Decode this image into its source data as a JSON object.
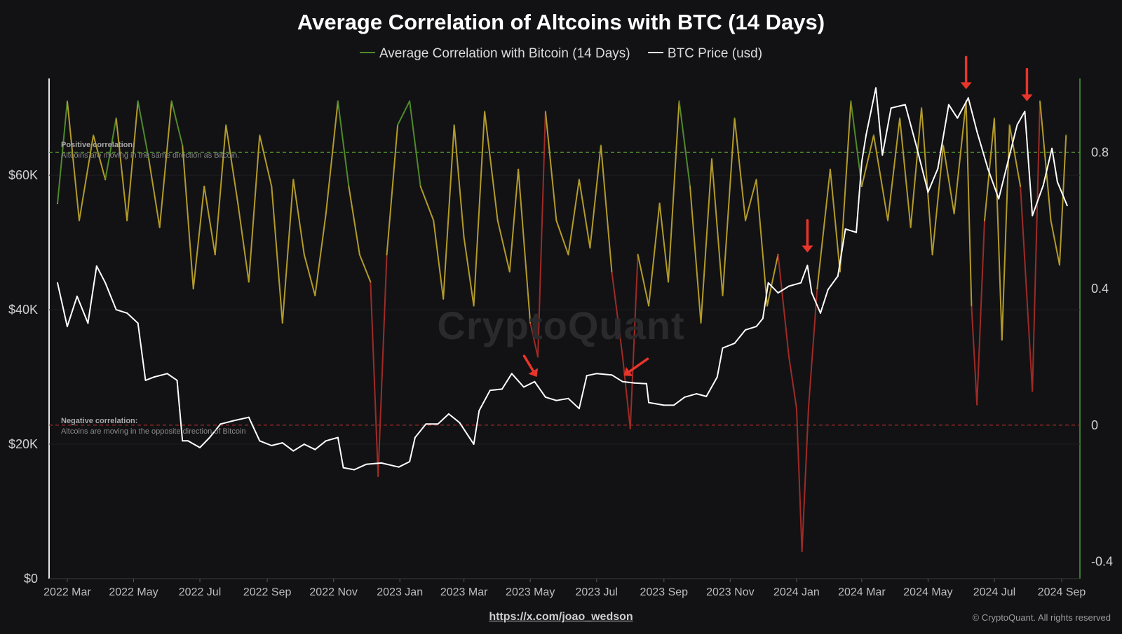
{
  "colors": {
    "background": "#121214",
    "price_line": "#ffffff",
    "corr_high": "#4f8a2b",
    "corr_mid": "#b39b2a",
    "corr_low": "#9e2b27",
    "right_axis": "#3d7a2a",
    "arrow": "#e8352b"
  },
  "footer": {
    "link": "https://x.com/joao_wedson",
    "copyright": "© CryptoQuant. All rights reserved"
  },
  "watermark": "CryptoQuant",
  "notes": {
    "positive_title": "Positive correlation:",
    "positive_text": "Altcoins are moving in the same direction as Bitcoin.",
    "negative_title": "Negative correlation:",
    "negative_text": "Altcoins are moving in the opposite direction of Bitcoin"
  },
  "chart_data": {
    "type": "line",
    "title": "Average Correlation of Altcoins with BTC (14 Days)",
    "x_axis": {
      "type": "date",
      "range": [
        "2022-02-20",
        "2024-09-10"
      ],
      "tick_labels": [
        "2022 Mar",
        "2022 May",
        "2022 Jul",
        "2022 Sep",
        "2022 Nov",
        "2023 Jan",
        "2023 Mar",
        "2023 May",
        "2023 Jul",
        "2023 Sep",
        "2023 Nov",
        "2024 Jan",
        "2024 Mar",
        "2024 May",
        "2024 Jul",
        "2024 Sep"
      ],
      "tick_dates": [
        "2022-03-01",
        "2022-05-01",
        "2022-07-01",
        "2022-09-01",
        "2022-11-01",
        "2023-01-01",
        "2023-03-01",
        "2023-05-01",
        "2023-07-01",
        "2023-09-01",
        "2023-11-01",
        "2024-01-01",
        "2024-03-01",
        "2024-05-01",
        "2024-07-01",
        "2024-09-01"
      ]
    },
    "left_axis": {
      "label": "",
      "range": [
        0,
        72000
      ],
      "ticks": [
        0,
        20000,
        40000,
        60000
      ],
      "tick_labels": [
        "$0",
        "$20K",
        "$40K",
        "$60K"
      ]
    },
    "right_axis": {
      "label": "",
      "range": [
        -0.45,
        1.0
      ],
      "ticks": [
        -0.4,
        0,
        0.4,
        0.8
      ],
      "tick_labels": [
        "-0.4",
        "0",
        "0.4",
        "0.8"
      ]
    },
    "reference_lines": [
      {
        "axis": "right",
        "value": 0.8,
        "color": "#4f8a2b",
        "style": "dashed"
      },
      {
        "axis": "right",
        "value": 0.0,
        "color": "#9e2b27",
        "style": "dashed"
      }
    ],
    "series": [
      {
        "name": "Average Correlation with Bitcoin (14 Days)",
        "axis": "right",
        "color_scale": "green above 0.8, gold between, red below ~0.25",
        "points": [
          [
            "2022-02-20",
            0.65
          ],
          [
            "2022-03-01",
            0.95
          ],
          [
            "2022-03-12",
            0.6
          ],
          [
            "2022-03-25",
            0.85
          ],
          [
            "2022-04-05",
            0.72
          ],
          [
            "2022-04-15",
            0.9
          ],
          [
            "2022-04-25",
            0.6
          ],
          [
            "2022-05-05",
            0.95
          ],
          [
            "2022-05-15",
            0.78
          ],
          [
            "2022-05-25",
            0.58
          ],
          [
            "2022-06-05",
            0.95
          ],
          [
            "2022-06-15",
            0.82
          ],
          [
            "2022-06-25",
            0.4
          ],
          [
            "2022-07-05",
            0.7
          ],
          [
            "2022-07-15",
            0.5
          ],
          [
            "2022-07-25",
            0.88
          ],
          [
            "2022-08-05",
            0.65
          ],
          [
            "2022-08-15",
            0.42
          ],
          [
            "2022-08-25",
            0.85
          ],
          [
            "2022-09-05",
            0.7
          ],
          [
            "2022-09-15",
            0.3
          ],
          [
            "2022-09-25",
            0.72
          ],
          [
            "2022-10-05",
            0.5
          ],
          [
            "2022-10-15",
            0.38
          ],
          [
            "2022-10-25",
            0.62
          ],
          [
            "2022-11-05",
            0.95
          ],
          [
            "2022-11-15",
            0.7
          ],
          [
            "2022-11-25",
            0.5
          ],
          [
            "2022-12-05",
            0.42
          ],
          [
            "2022-12-12",
            -0.15
          ],
          [
            "2022-12-20",
            0.5
          ],
          [
            "2022-12-30",
            0.88
          ],
          [
            "2023-01-10",
            0.95
          ],
          [
            "2023-01-20",
            0.7
          ],
          [
            "2023-02-01",
            0.6
          ],
          [
            "2023-02-10",
            0.37
          ],
          [
            "2023-02-20",
            0.88
          ],
          [
            "2023-03-01",
            0.55
          ],
          [
            "2023-03-10",
            0.35
          ],
          [
            "2023-03-20",
            0.92
          ],
          [
            "2023-04-01",
            0.6
          ],
          [
            "2023-04-12",
            0.45
          ],
          [
            "2023-04-20",
            0.75
          ],
          [
            "2023-05-01",
            0.3
          ],
          [
            "2023-05-08",
            0.2
          ],
          [
            "2023-05-15",
            0.92
          ],
          [
            "2023-05-25",
            0.6
          ],
          [
            "2023-06-05",
            0.5
          ],
          [
            "2023-06-15",
            0.72
          ],
          [
            "2023-06-25",
            0.52
          ],
          [
            "2023-07-05",
            0.82
          ],
          [
            "2023-07-15",
            0.45
          ],
          [
            "2023-07-25",
            0.2
          ],
          [
            "2023-08-01",
            -0.01
          ],
          [
            "2023-08-08",
            0.5
          ],
          [
            "2023-08-18",
            0.35
          ],
          [
            "2023-08-28",
            0.65
          ],
          [
            "2023-09-05",
            0.42
          ],
          [
            "2023-09-15",
            0.95
          ],
          [
            "2023-09-25",
            0.7
          ],
          [
            "2023-10-05",
            0.3
          ],
          [
            "2023-10-15",
            0.78
          ],
          [
            "2023-10-25",
            0.38
          ],
          [
            "2023-11-05",
            0.9
          ],
          [
            "2023-11-15",
            0.6
          ],
          [
            "2023-11-25",
            0.72
          ],
          [
            "2023-12-05",
            0.35
          ],
          [
            "2023-12-15",
            0.5
          ],
          [
            "2023-12-25",
            0.2
          ],
          [
            "2024-01-01",
            0.05
          ],
          [
            "2024-01-06",
            -0.37
          ],
          [
            "2024-01-12",
            0.05
          ],
          [
            "2024-01-20",
            0.4
          ],
          [
            "2024-02-01",
            0.75
          ],
          [
            "2024-02-10",
            0.45
          ],
          [
            "2024-02-20",
            0.95
          ],
          [
            "2024-03-01",
            0.7
          ],
          [
            "2024-03-12",
            0.85
          ],
          [
            "2024-03-25",
            0.6
          ],
          [
            "2024-04-05",
            0.9
          ],
          [
            "2024-04-15",
            0.58
          ],
          [
            "2024-04-25",
            0.93
          ],
          [
            "2024-05-05",
            0.5
          ],
          [
            "2024-05-15",
            0.82
          ],
          [
            "2024-05-25",
            0.62
          ],
          [
            "2024-06-05",
            0.95
          ],
          [
            "2024-06-10",
            0.35
          ],
          [
            "2024-06-15",
            0.06
          ],
          [
            "2024-06-22",
            0.6
          ],
          [
            "2024-07-01",
            0.9
          ],
          [
            "2024-07-08",
            0.25
          ],
          [
            "2024-07-15",
            0.88
          ],
          [
            "2024-07-25",
            0.7
          ],
          [
            "2024-08-05",
            0.1
          ],
          [
            "2024-08-12",
            0.95
          ],
          [
            "2024-08-22",
            0.6
          ],
          [
            "2024-08-30",
            0.47
          ],
          [
            "2024-09-05",
            0.85
          ]
        ]
      },
      {
        "name": "BTC Price (usd)",
        "axis": "left",
        "color": "#ffffff",
        "points": [
          [
            "2022-02-20",
            44000
          ],
          [
            "2022-03-01",
            37500
          ],
          [
            "2022-03-10",
            42000
          ],
          [
            "2022-03-20",
            38000
          ],
          [
            "2022-03-28",
            46500
          ],
          [
            "2022-04-05",
            44000
          ],
          [
            "2022-04-15",
            40000
          ],
          [
            "2022-04-25",
            39500
          ],
          [
            "2022-05-05",
            38000
          ],
          [
            "2022-05-12",
            29500
          ],
          [
            "2022-05-20",
            30000
          ],
          [
            "2022-06-01",
            30500
          ],
          [
            "2022-06-10",
            29500
          ],
          [
            "2022-06-15",
            20500
          ],
          [
            "2022-06-20",
            20500
          ],
          [
            "2022-07-01",
            19500
          ],
          [
            "2022-07-10",
            21000
          ],
          [
            "2022-07-20",
            23000
          ],
          [
            "2022-08-01",
            23500
          ],
          [
            "2022-08-15",
            24000
          ],
          [
            "2022-08-25",
            20500
          ],
          [
            "2022-09-05",
            19800
          ],
          [
            "2022-09-15",
            20200
          ],
          [
            "2022-09-25",
            19000
          ],
          [
            "2022-10-05",
            20000
          ],
          [
            "2022-10-15",
            19200
          ],
          [
            "2022-10-25",
            20500
          ],
          [
            "2022-11-05",
            21000
          ],
          [
            "2022-11-10",
            16500
          ],
          [
            "2022-11-20",
            16200
          ],
          [
            "2022-12-01",
            17000
          ],
          [
            "2022-12-15",
            17200
          ],
          [
            "2022-12-31",
            16600
          ],
          [
            "2023-01-10",
            17400
          ],
          [
            "2023-01-15",
            21000
          ],
          [
            "2023-01-25",
            23000
          ],
          [
            "2023-02-05",
            23000
          ],
          [
            "2023-02-15",
            24500
          ],
          [
            "2023-02-25",
            23200
          ],
          [
            "2023-03-10",
            20000
          ],
          [
            "2023-03-15",
            25000
          ],
          [
            "2023-03-25",
            28000
          ],
          [
            "2023-04-05",
            28200
          ],
          [
            "2023-04-14",
            30500
          ],
          [
            "2023-04-25",
            28500
          ],
          [
            "2023-05-05",
            29300
          ],
          [
            "2023-05-15",
            27000
          ],
          [
            "2023-05-25",
            26500
          ],
          [
            "2023-06-05",
            26800
          ],
          [
            "2023-06-15",
            25300
          ],
          [
            "2023-06-22",
            30200
          ],
          [
            "2023-07-01",
            30500
          ],
          [
            "2023-07-15",
            30300
          ],
          [
            "2023-07-25",
            29300
          ],
          [
            "2023-08-05",
            29100
          ],
          [
            "2023-08-16",
            29000
          ],
          [
            "2023-08-18",
            26200
          ],
          [
            "2023-09-01",
            25800
          ],
          [
            "2023-09-10",
            25800
          ],
          [
            "2023-09-20",
            27000
          ],
          [
            "2023-10-01",
            27500
          ],
          [
            "2023-10-10",
            27100
          ],
          [
            "2023-10-20",
            30000
          ],
          [
            "2023-10-25",
            34300
          ],
          [
            "2023-11-05",
            35000
          ],
          [
            "2023-11-15",
            37000
          ],
          [
            "2023-11-25",
            37500
          ],
          [
            "2023-12-01",
            38700
          ],
          [
            "2023-12-06",
            44000
          ],
          [
            "2023-12-15",
            42500
          ],
          [
            "2023-12-25",
            43500
          ],
          [
            "2024-01-05",
            44000
          ],
          [
            "2024-01-11",
            46600
          ],
          [
            "2024-01-15",
            42500
          ],
          [
            "2024-01-23",
            39500
          ],
          [
            "2024-01-30",
            43000
          ],
          [
            "2024-02-08",
            45000
          ],
          [
            "2024-02-15",
            52000
          ],
          [
            "2024-02-25",
            51500
          ],
          [
            "2024-03-01",
            62000
          ],
          [
            "2024-03-05",
            66000
          ],
          [
            "2024-03-14",
            73000
          ],
          [
            "2024-03-20",
            63000
          ],
          [
            "2024-03-28",
            70000
          ],
          [
            "2024-04-10",
            70500
          ],
          [
            "2024-04-20",
            64500
          ],
          [
            "2024-05-01",
            57500
          ],
          [
            "2024-05-10",
            61000
          ],
          [
            "2024-05-20",
            70500
          ],
          [
            "2024-05-28",
            68500
          ],
          [
            "2024-06-07",
            71500
          ],
          [
            "2024-06-15",
            66500
          ],
          [
            "2024-06-25",
            61000
          ],
          [
            "2024-07-05",
            56500
          ],
          [
            "2024-07-15",
            63000
          ],
          [
            "2024-07-22",
            67500
          ],
          [
            "2024-07-29",
            69500
          ],
          [
            "2024-08-05",
            54000
          ],
          [
            "2024-08-15",
            58500
          ],
          [
            "2024-08-23",
            64000
          ],
          [
            "2024-08-28",
            59000
          ],
          [
            "2024-09-06",
            55500
          ]
        ]
      }
    ],
    "annotations": [
      {
        "type": "arrow",
        "date": "2023-05-07",
        "axis": "left",
        "value": 30000,
        "from": "upper-left"
      },
      {
        "type": "arrow",
        "date": "2023-07-26",
        "axis": "left",
        "value": 30200,
        "from": "upper-right"
      },
      {
        "type": "arrow",
        "date": "2024-01-11",
        "axis": "left",
        "value": 48500,
        "from": "above"
      },
      {
        "type": "arrow",
        "date": "2024-06-05",
        "axis": "left",
        "value": 72800,
        "from": "above"
      },
      {
        "type": "arrow",
        "date": "2024-07-31",
        "axis": "left",
        "value": 71000,
        "from": "above"
      }
    ],
    "grid": false,
    "legend_position": "top-center"
  }
}
